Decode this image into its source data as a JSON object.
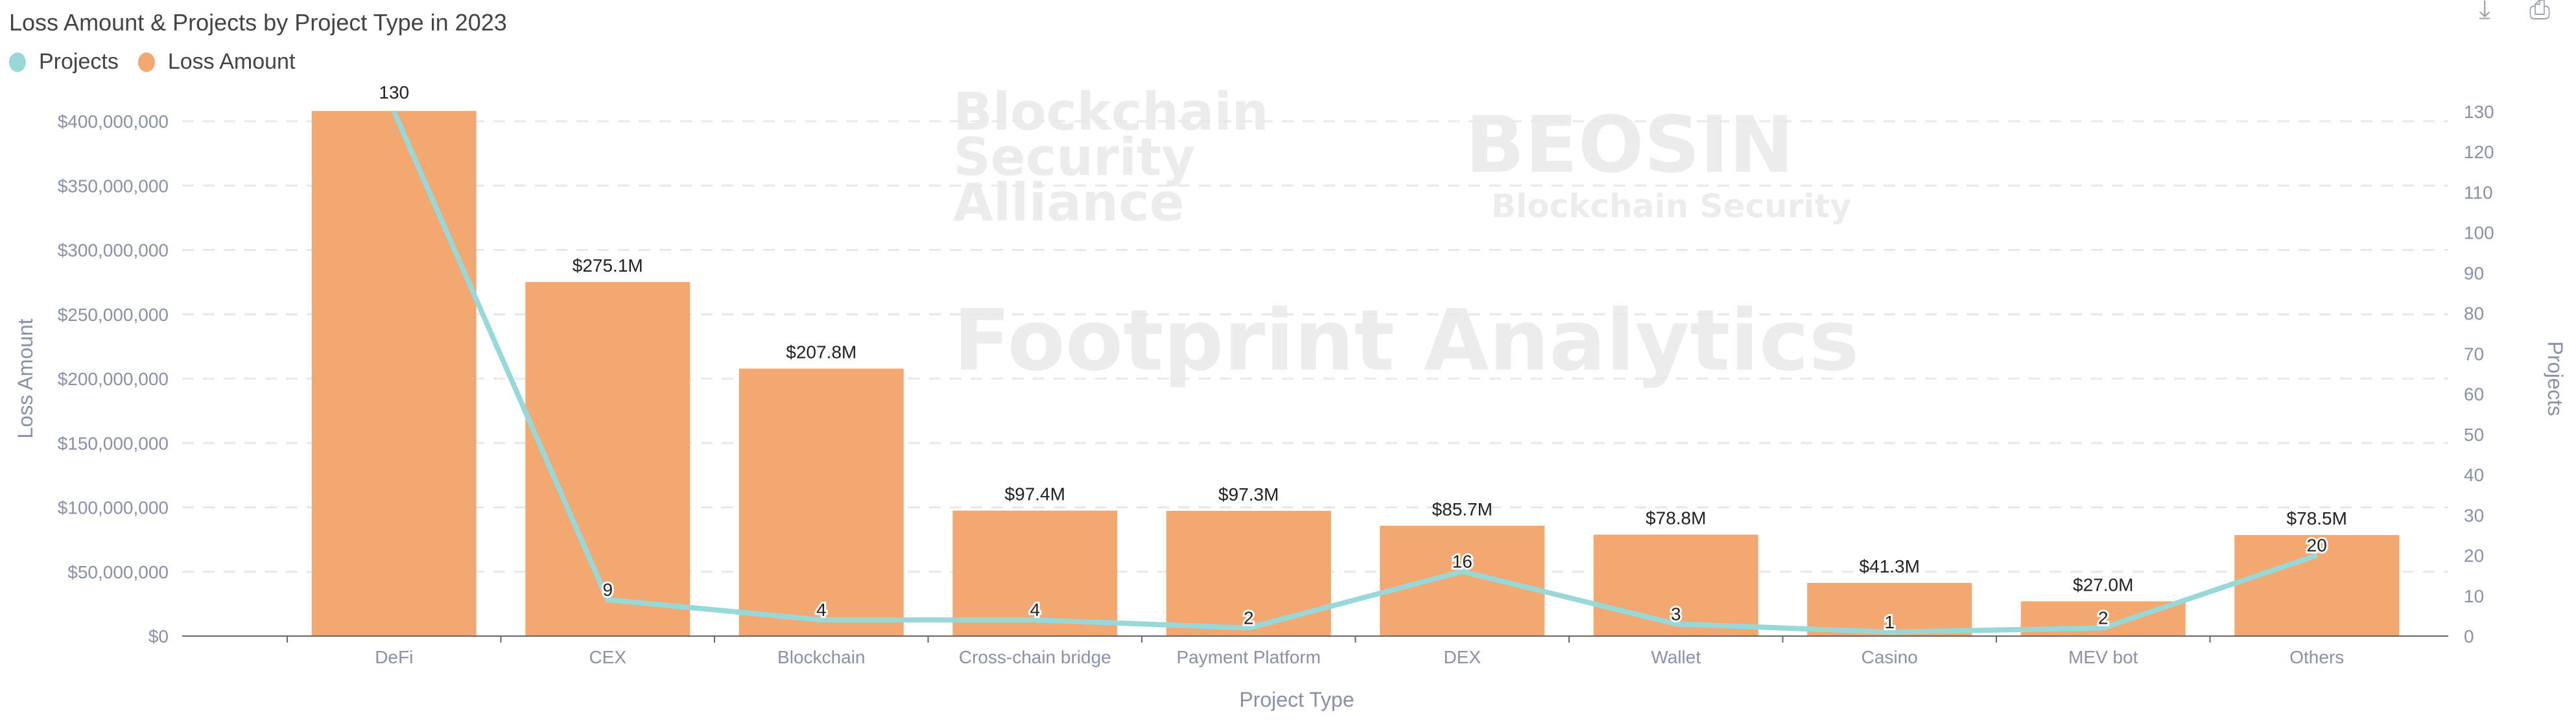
{
  "header": {
    "title": "Loss Amount & Projects by Project Type in 2023",
    "tools": [
      "download-icon",
      "print-icon"
    ]
  },
  "watermarks": [
    "Blockchain Security Alliance",
    "BEOSIN Blockchain Security",
    "Footprint Analytics"
  ],
  "chart_data": {
    "type": "bar+line",
    "title": "Loss Amount & Projects by Project Type in 2023",
    "xlabel": "Project Type",
    "ylabel": "Loss Amount",
    "y2label": "Projects",
    "legend_position": "top-left",
    "grid": true,
    "categories": [
      "DeFi",
      "CEX",
      "Blockchain",
      "Cross-chain bridge",
      "Payment Platform",
      "DEX",
      "Wallet",
      "Casino",
      "MEV bot",
      "Others"
    ],
    "ylim": [
      0,
      400000000
    ],
    "yticks": [
      "$0",
      "$50,000,000",
      "$100,000,000",
      "$150,000,000",
      "$200,000,000",
      "$250,000,000",
      "$300,000,000",
      "$350,000,000",
      "$400,000,000"
    ],
    "y2lim": [
      0,
      130
    ],
    "y2ticks": [
      "0",
      "10",
      "20",
      "30",
      "40",
      "50",
      "60",
      "70",
      "80",
      "90",
      "100",
      "110",
      "120",
      "130"
    ],
    "series": [
      {
        "name": "Loss Amount",
        "type": "bar",
        "color": "#f2a870",
        "values": [
          408000000,
          275100000,
          207800000,
          97400000,
          97300000,
          85700000,
          78800000,
          41300000,
          27000000,
          78500000
        ],
        "labels": [
          "",
          "$275.1M",
          "$207.8M",
          "$97.4M",
          "$97.3M",
          "$85.7M",
          "$78.8M",
          "$41.3M",
          "$27.0M",
          "$78.5M"
        ]
      },
      {
        "name": "Projects",
        "type": "line",
        "axis": "right",
        "color": "#98d8d8",
        "values": [
          130,
          9,
          4,
          4,
          2,
          16,
          3,
          1,
          2,
          20
        ],
        "labels": [
          "130",
          "9",
          "4",
          "4",
          "2",
          "16",
          "3",
          "1",
          "2",
          "20"
        ]
      }
    ]
  }
}
